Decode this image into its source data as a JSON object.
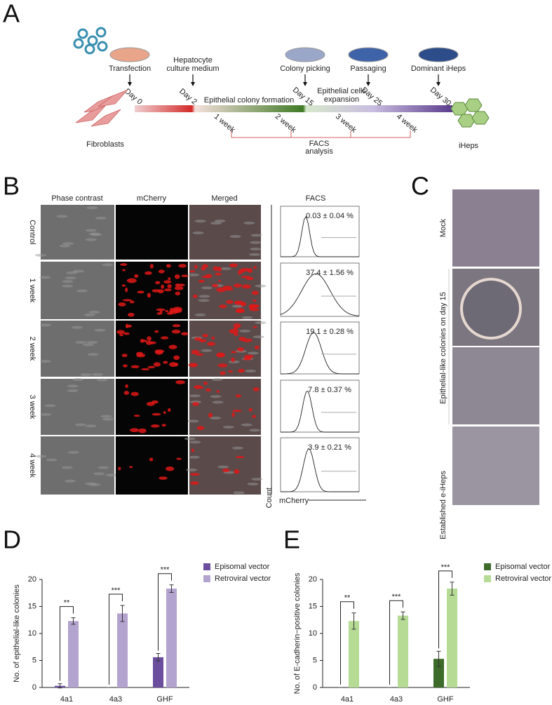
{
  "panel_a": {
    "label": "A",
    "events": [
      {
        "label": [
          "Transfection"
        ],
        "day": "Day 0"
      },
      {
        "label": [
          "Hepatocyte",
          "culture medium"
        ],
        "day": "Day 2"
      },
      {
        "label": [
          "Colony picking"
        ],
        "day": "Day 15"
      },
      {
        "label": [
          "Passaging"
        ],
        "day": "Day 25"
      },
      {
        "label": [
          "Dominant iHeps"
        ],
        "day": "Day 30"
      }
    ],
    "phases": [
      [
        "Epithelial colony formation"
      ],
      [
        "Epithelial cells",
        "expansion"
      ]
    ],
    "weeks": [
      "1 week",
      "2 week",
      "3 week",
      "4 week"
    ],
    "facs": [
      "FACS",
      "analysis"
    ],
    "start": "Fibroblasts",
    "end": "iHeps"
  },
  "panel_b": {
    "label": "B",
    "columns": [
      "Phase contrast",
      "mCherry",
      "Merged",
      "FACS"
    ],
    "rows": [
      "Control",
      "1 week",
      "2 week",
      "3 week",
      "4 week"
    ],
    "facs_values": [
      "0.03 ± 0.04 %",
      "37.4 ± 1.56 %",
      "19.1 ± 0.28 %",
      "7.8 ± 0.37 %",
      "3.9 ± 0.21 %"
    ],
    "y_axis": "Count",
    "x_axis": "mCherry"
  },
  "panel_c": {
    "label": "C",
    "rows": [
      "Mock",
      "Epithelial-like colonies on day 15",
      "Established e-iHeps"
    ]
  },
  "chart_data": [
    {
      "type": "bar",
      "panel": "D",
      "ylabel": "No. of epithelial-like colonies",
      "categories": [
        "4a1",
        "4a3",
        "GHF"
      ],
      "series": [
        {
          "name": "Episomal vector",
          "color": "#6b4f9e",
          "values": [
            0.3,
            0,
            5.6
          ],
          "errors": [
            0.4,
            0,
            0.7
          ]
        },
        {
          "name": "Retroviral vector",
          "color": "#b3a3cf",
          "values": [
            12.3,
            13.7,
            18.3
          ],
          "errors": [
            0.6,
            1.5,
            0.7
          ]
        }
      ],
      "significance": [
        "**",
        "***",
        "***"
      ],
      "ylim": [
        0,
        20
      ],
      "yticks": [
        0,
        5,
        10,
        15,
        20
      ]
    },
    {
      "type": "bar",
      "panel": "E",
      "ylabel": "No. of E-cadherin−positive colonies",
      "categories": [
        "4a1",
        "4a3",
        "GHF"
      ],
      "series": [
        {
          "name": "Episomal vector",
          "color": "#3d6b2a",
          "values": [
            0,
            0,
            5.3
          ],
          "errors": [
            0,
            0,
            1.4
          ]
        },
        {
          "name": "Retroviral vector",
          "color": "#b5db95",
          "values": [
            12.3,
            13.3,
            18.3
          ],
          "errors": [
            1.5,
            0.7,
            1.2
          ]
        }
      ],
      "significance": [
        "**",
        "***",
        "***"
      ],
      "ylim": [
        0,
        20
      ],
      "yticks": [
        0,
        5,
        10,
        15,
        20
      ]
    }
  ]
}
